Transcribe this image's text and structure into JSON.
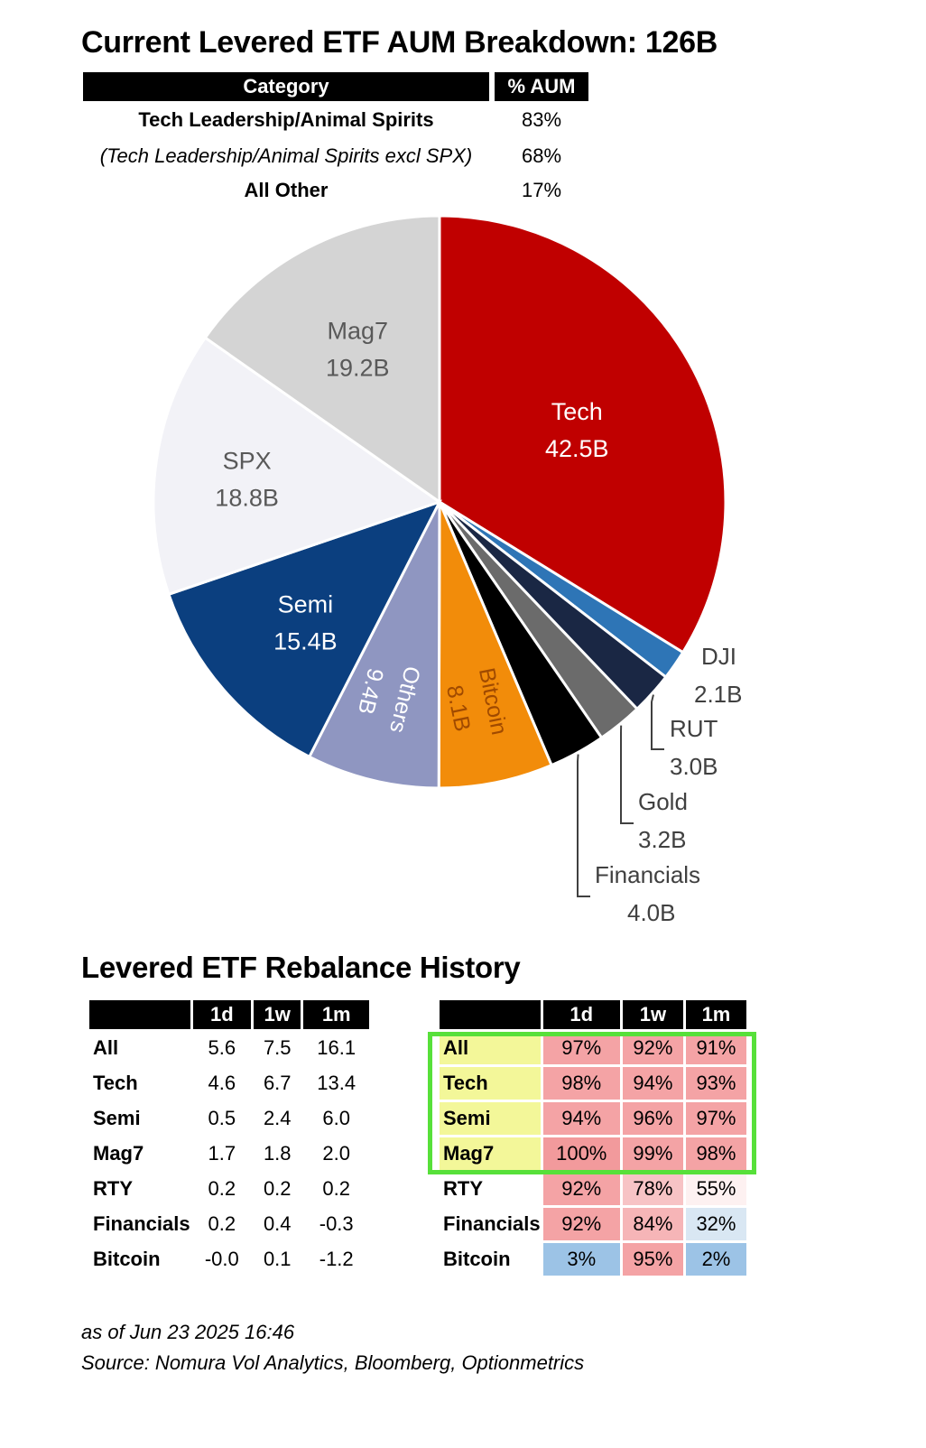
{
  "title": "Current Levered ETF AUM Breakdown: 126B",
  "summary": {
    "headers": [
      "Category",
      "% AUM"
    ],
    "rows": [
      {
        "label": "Tech Leadership/Animal Spirits",
        "value": "83%"
      },
      {
        "label": "(Tech Leadership/Animal Spirits excl SPX)",
        "value": "68%"
      },
      {
        "label": "All Other",
        "value": "17%"
      }
    ]
  },
  "chart_data": {
    "type": "pie",
    "unit": "B",
    "slices": [
      {
        "label": "Tech",
        "value": 42.5,
        "value_label": "42.5B",
        "color": "#c00000"
      },
      {
        "label": "DJI",
        "value": 2.1,
        "value_label": "2.1B",
        "color": "#2e75b6"
      },
      {
        "label": "RUT",
        "value": 3.0,
        "value_label": "3.0B",
        "color": "#1a2744"
      },
      {
        "label": "Gold",
        "value": 3.2,
        "value_label": "3.2B",
        "color": "#6b6b6b"
      },
      {
        "label": "Financials",
        "value": 4.0,
        "value_label": "4.0B",
        "color": "#000000"
      },
      {
        "label": "Bitcoin",
        "value": 8.1,
        "value_label": "8.1B",
        "color": "#f28c0a"
      },
      {
        "label": "Others",
        "value": 9.4,
        "value_label": "9.4B",
        "color": "#8f96c1"
      },
      {
        "label": "Semi",
        "value": 15.4,
        "value_label": "15.4B",
        "color": "#0b3f7f"
      },
      {
        "label": "SPX",
        "value": 18.8,
        "value_label": "18.8B",
        "color": "#f2f2f7"
      },
      {
        "label": "Mag7",
        "value": 19.2,
        "value_label": "19.2B",
        "color": "#d4d4d4"
      }
    ]
  },
  "history_title": "Levered ETF Rebalance History",
  "history": {
    "columns": [
      "1d",
      "1w",
      "1m"
    ],
    "rows": [
      {
        "label": "All",
        "values": [
          "5.6",
          "7.5",
          "16.1"
        ]
      },
      {
        "label": "Tech",
        "values": [
          "4.6",
          "6.7",
          "13.4"
        ]
      },
      {
        "label": "Semi",
        "values": [
          "0.5",
          "2.4",
          "6.0"
        ]
      },
      {
        "label": "Mag7",
        "values": [
          "1.7",
          "1.8",
          "2.0"
        ]
      },
      {
        "label": "RTY",
        "values": [
          "0.2",
          "0.2",
          "0.2"
        ]
      },
      {
        "label": "Financials",
        "values": [
          "0.2",
          "0.4",
          "-0.3"
        ]
      },
      {
        "label": "Bitcoin",
        "values": [
          "-0.0",
          "0.1",
          "-1.2"
        ]
      }
    ]
  },
  "percentiles": {
    "columns": [
      "1d",
      "1w",
      "1m"
    ],
    "rows": [
      {
        "label": "All",
        "values": [
          "97%",
          "92%",
          "91%"
        ],
        "colors": [
          "#f4a3a5",
          "#f4a3a5",
          "#f4a3a5"
        ]
      },
      {
        "label": "Tech",
        "values": [
          "98%",
          "94%",
          "93%"
        ],
        "colors": [
          "#f4a3a5",
          "#f4a3a5",
          "#f4a3a5"
        ]
      },
      {
        "label": "Semi",
        "values": [
          "94%",
          "96%",
          "97%"
        ],
        "colors": [
          "#f4a3a5",
          "#f4a3a5",
          "#f4a3a5"
        ]
      },
      {
        "label": "Mag7",
        "values": [
          "100%",
          "99%",
          "98%"
        ],
        "colors": [
          "#f29a9c",
          "#f4a3a5",
          "#f4a3a5"
        ]
      },
      {
        "label": "RTY",
        "values": [
          "92%",
          "78%",
          "55%"
        ],
        "colors": [
          "#f4a3a5",
          "#f7c3c5",
          "#fdf1f1"
        ]
      },
      {
        "label": "Financials",
        "values": [
          "92%",
          "84%",
          "32%"
        ],
        "colors": [
          "#f4a3a5",
          "#f6b5b7",
          "#d9e7f3"
        ]
      },
      {
        "label": "Bitcoin",
        "values": [
          "3%",
          "95%",
          "2%"
        ],
        "colors": [
          "#9cc3e6",
          "#f4a3a5",
          "#9cc3e6"
        ]
      }
    ],
    "highlight_color": "#57e03a",
    "label_highlight_color": "#f3f799"
  },
  "footer": {
    "date": "as of Jun 23 2025 16:46",
    "source": "Source: Nomura Vol Analytics, Bloomberg, Optionmetrics"
  }
}
